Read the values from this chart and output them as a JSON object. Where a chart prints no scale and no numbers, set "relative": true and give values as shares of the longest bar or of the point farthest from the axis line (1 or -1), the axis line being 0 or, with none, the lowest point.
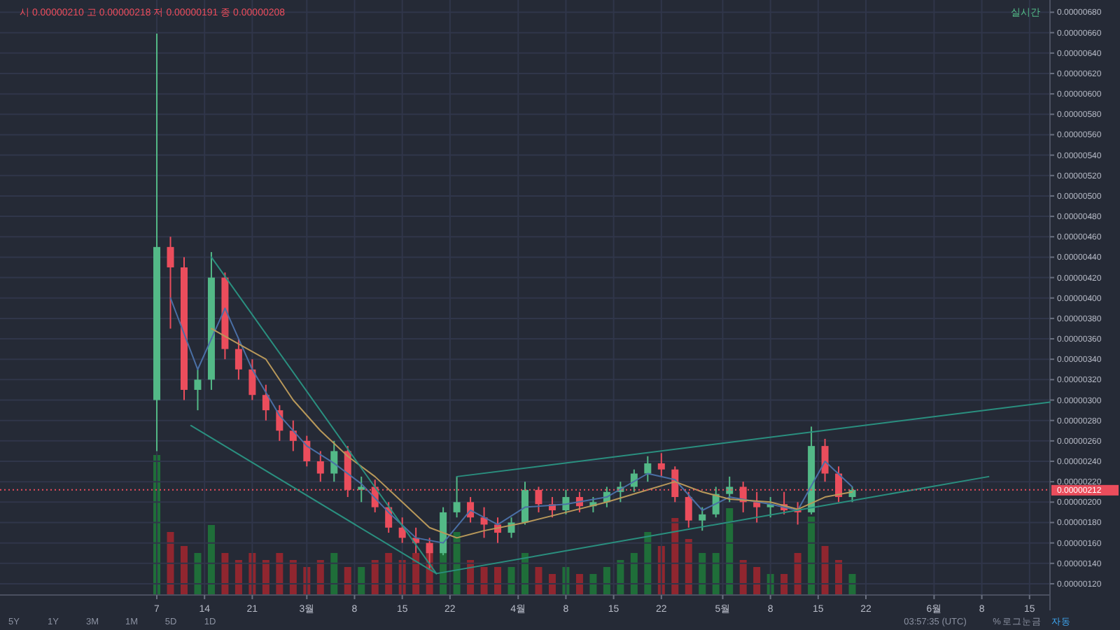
{
  "chart_data": [
    {
      "type": "candlestick",
      "x": [
        "--02-07",
        "--02-09",
        "--02-11",
        "--02-13",
        "--02-15",
        "--02-17",
        "--02-19",
        "--02-21",
        "--02-23",
        "--02-25",
        "--02-27",
        "--03-01",
        "--03-03",
        "--03-05",
        "--03-07",
        "--03-09",
        "--03-11",
        "--03-13",
        "--03-15",
        "--03-17",
        "--03-19",
        "--03-21",
        "--03-23",
        "--03-25",
        "--03-27",
        "--03-29",
        "--03-31",
        "--04-02",
        "--04-04",
        "--04-06",
        "--04-08",
        "--04-10",
        "--04-12",
        "--04-14",
        "--04-16",
        "--04-18",
        "--04-20",
        "--04-22",
        "--04-24",
        "--04-26",
        "--04-28",
        "--04-30",
        "--05-02",
        "--05-04",
        "--05-06",
        "--05-08",
        "--05-10",
        "--05-12",
        "--05-14",
        "--05-16",
        "--05-18",
        "--05-20"
      ],
      "ohlc": [
        [
          3e-06,
          6.59e-06,
          2.5e-06,
          4.5e-06
        ],
        [
          4.5e-06,
          4.6e-06,
          3.7e-06,
          4.3e-06
        ],
        [
          4.3e-06,
          4.4e-06,
          3e-06,
          3.1e-06
        ],
        [
          3.1e-06,
          3.3e-06,
          2.9e-06,
          3.2e-06
        ],
        [
          3.2e-06,
          4.45e-06,
          3.1e-06,
          4.2e-06
        ],
        [
          4.2e-06,
          4.25e-06,
          3.4e-06,
          3.5e-06
        ],
        [
          3.5e-06,
          3.6e-06,
          3.2e-06,
          3.3e-06
        ],
        [
          3.3e-06,
          3.4e-06,
          3e-06,
          3.05e-06
        ],
        [
          3.05e-06,
          3.15e-06,
          2.8e-06,
          2.9e-06
        ],
        [
          2.9e-06,
          2.95e-06,
          2.6e-06,
          2.7e-06
        ],
        [
          2.7e-06,
          2.8e-06,
          2.5e-06,
          2.6e-06
        ],
        [
          2.6e-06,
          2.65e-06,
          2.35e-06,
          2.4e-06
        ],
        [
          2.4e-06,
          2.5e-06,
          2.2e-06,
          2.28e-06
        ],
        [
          2.28e-06,
          2.6e-06,
          2.2e-06,
          2.5e-06
        ],
        [
          2.5e-06,
          2.55e-06,
          2.05e-06,
          2.12e-06
        ],
        [
          2.12e-06,
          2.25e-06,
          2e-06,
          2.15e-06
        ],
        [
          2.15e-06,
          2.22e-06,
          1.9e-06,
          1.95e-06
        ],
        [
          1.95e-06,
          2e-06,
          1.7e-06,
          1.75e-06
        ],
        [
          1.75e-06,
          1.85e-06,
          1.6e-06,
          1.65e-06
        ],
        [
          1.65e-06,
          1.75e-06,
          1.5e-06,
          1.6e-06
        ],
        [
          1.6e-06,
          1.65e-06,
          1.35e-06,
          1.5e-06
        ],
        [
          1.5e-06,
          1.95e-06,
          1.48e-06,
          1.9e-06
        ],
        [
          1.9e-06,
          2.25e-06,
          1.85e-06,
          2e-06
        ],
        [
          2e-06,
          2.05e-06,
          1.8e-06,
          1.85e-06
        ],
        [
          1.85e-06,
          1.95e-06,
          1.65e-06,
          1.78e-06
        ],
        [
          1.78e-06,
          1.85e-06,
          1.6e-06,
          1.7e-06
        ],
        [
          1.7e-06,
          1.85e-06,
          1.65e-06,
          1.8e-06
        ],
        [
          1.8e-06,
          2.2e-06,
          1.78e-06,
          2.12e-06
        ],
        [
          2.12e-06,
          2.15e-06,
          1.9e-06,
          1.98e-06
        ],
        [
          1.98e-06,
          2.05e-06,
          1.85e-06,
          1.92e-06
        ],
        [
          1.92e-06,
          2.12e-06,
          1.88e-06,
          2.05e-06
        ],
        [
          2.05e-06,
          2.1e-06,
          1.9e-06,
          1.96e-06
        ],
        [
          1.96e-06,
          2.05e-06,
          1.9e-06,
          2e-06
        ],
        [
          2e-06,
          2.15e-06,
          1.95e-06,
          2.1e-06
        ],
        [
          2.1e-06,
          2.2e-06,
          2e-06,
          2.15e-06
        ],
        [
          2.15e-06,
          2.32e-06,
          2.1e-06,
          2.28e-06
        ],
        [
          2.28e-06,
          2.45e-06,
          2.2e-06,
          2.38e-06
        ],
        [
          2.38e-06,
          2.48e-06,
          2.25e-06,
          2.32e-06
        ],
        [
          2.32e-06,
          2.35e-06,
          2e-06,
          2.05e-06
        ],
        [
          2.05e-06,
          2.1e-06,
          1.75e-06,
          1.82e-06
        ],
        [
          1.82e-06,
          1.95e-06,
          1.72e-06,
          1.88e-06
        ],
        [
          1.88e-06,
          2.15e-06,
          1.85e-06,
          2.08e-06
        ],
        [
          2.08e-06,
          2.25e-06,
          2e-06,
          2.15e-06
        ],
        [
          2.15e-06,
          2.2e-06,
          1.9e-06,
          2e-06
        ],
        [
          2e-06,
          2.1e-06,
          1.8e-06,
          1.95e-06
        ],
        [
          1.95e-06,
          2.05e-06,
          1.85e-06,
          1.98e-06
        ],
        [
          1.98e-06,
          2.1e-06,
          1.88e-06,
          1.92e-06
        ],
        [
          1.92e-06,
          2e-06,
          1.78e-06,
          1.9e-06
        ],
        [
          1.9e-06,
          2.74e-06,
          1.88e-06,
          2.55e-06
        ],
        [
          2.55e-06,
          2.62e-06,
          2.2e-06,
          2.28e-06
        ],
        [
          2.28e-06,
          2.35e-06,
          2e-06,
          2.05e-06
        ],
        [
          2.05e-06,
          2.15e-06,
          2e-06,
          2.12e-06
        ]
      ],
      "series": [
        {
          "type": "line",
          "color": "#4a6fa5",
          "x": [
            "--02-09",
            "--02-13",
            "--02-17",
            "--02-21",
            "--02-25",
            "--03-01",
            "--03-05",
            "--03-09",
            "--03-13",
            "--03-17",
            "--03-21",
            "--03-25",
            "--03-29",
            "--04-02",
            "--04-08",
            "--04-14",
            "--04-20",
            "--04-24",
            "--04-28",
            "--05-02",
            "--05-08",
            "--05-12",
            "--05-16",
            "--05-20"
          ],
          "values": [
            4e-06,
            3.3e-06,
            3.9e-06,
            3.3e-06,
            2.85e-06,
            2.55e-06,
            2.38e-06,
            2.18e-06,
            1.9e-06,
            1.65e-06,
            1.6e-06,
            1.92e-06,
            1.78e-06,
            1.95e-06,
            1.98e-06,
            2.05e-06,
            2.28e-06,
            2.22e-06,
            1.92e-06,
            2.05e-06,
            1.98e-06,
            1.92e-06,
            2.4e-06,
            2.15e-06
          ]
        },
        {
          "type": "line",
          "color": "#b8985a",
          "x": [
            "--02-15",
            "--02-19",
            "--02-23",
            "--02-27",
            "--03-03",
            "--03-07",
            "--03-11",
            "--03-15",
            "--03-19",
            "--03-23",
            "--03-27",
            "--04-02",
            "--04-08",
            "--04-14",
            "--04-20",
            "--04-24",
            "--04-28",
            "--05-02",
            "--05-08",
            "--05-12",
            "--05-16",
            "--05-20"
          ],
          "values": [
            3.7e-06,
            3.55e-06,
            3.4e-06,
            3e-06,
            2.7e-06,
            2.45e-06,
            2.25e-06,
            2e-06,
            1.75e-06,
            1.65e-06,
            1.72e-06,
            1.8e-06,
            1.9e-06,
            2e-06,
            2.12e-06,
            2.2e-06,
            2.1e-06,
            2.03e-06,
            2e-06,
            1.93e-06,
            2.05e-06,
            2.1e-06
          ]
        },
        {
          "type": "line",
          "color": "#2a8f7f",
          "x": [
            "--02-15",
            "--03-20"
          ],
          "values": [
            4.4e-06,
            1.3e-06
          ]
        },
        {
          "type": "line",
          "color": "#2a8f7f",
          "x": [
            "--02-12",
            "--03-20"
          ],
          "values": [
            2.75e-06,
            1.3e-06
          ]
        },
        {
          "type": "line",
          "color": "#2a8f7f",
          "x": [
            "--03-23",
            "--06-18"
          ],
          "values": [
            2.25e-06,
            2.98e-06
          ]
        },
        {
          "type": "line",
          "color": "#2a8f7f",
          "x": [
            "--03-20",
            "--06-09"
          ],
          "values": [
            1.3e-06,
            2.25e-06
          ]
        }
      ],
      "xlim": [
        "--01-15",
        "--06-18"
      ],
      "xticks": [
        {
          "value": "--02-07",
          "label": "7"
        },
        {
          "value": "--02-14",
          "label": "14"
        },
        {
          "value": "--02-21",
          "label": "21"
        },
        {
          "value": "--03-01",
          "label": "3월"
        },
        {
          "value": "--03-08",
          "label": "8"
        },
        {
          "value": "--03-15",
          "label": "15"
        },
        {
          "value": "--03-22",
          "label": "22"
        },
        {
          "value": "--04-01",
          "label": "4월"
        },
        {
          "value": "--04-08",
          "label": "8"
        },
        {
          "value": "--04-15",
          "label": "15"
        },
        {
          "value": "--04-22",
          "label": "22"
        },
        {
          "value": "--05-01",
          "label": "5월"
        },
        {
          "value": "--05-08",
          "label": "8"
        },
        {
          "value": "--05-15",
          "label": "15"
        },
        {
          "value": "--05-22",
          "label": "22"
        },
        {
          "value": "--06-01",
          "label": "6월"
        },
        {
          "value": "--06-08",
          "label": "8"
        },
        {
          "value": "--06-15",
          "label": "15"
        }
      ],
      "ylim": [
        1.09e-06,
        6.92e-06
      ],
      "yticks": [
        {
          "value": 1.2e-06,
          "label": "0.00000120"
        },
        {
          "value": 1.4e-06,
          "label": "0.00000140"
        },
        {
          "value": 1.6e-06,
          "label": "0.00000160"
        },
        {
          "value": 1.8e-06,
          "label": "0.00000180"
        },
        {
          "value": 2e-06,
          "label": "0.00000200"
        },
        {
          "value": 2.2e-06,
          "label": "0.00000220"
        },
        {
          "value": 2.4e-06,
          "label": "0.00000240"
        },
        {
          "value": 2.6e-06,
          "label": "0.00000260"
        },
        {
          "value": 2.8e-06,
          "label": "0.00000280"
        },
        {
          "value": 3e-06,
          "label": "0.00000300"
        },
        {
          "value": 3.2e-06,
          "label": "0.00000320"
        },
        {
          "value": 3.4e-06,
          "label": "0.00000340"
        },
        {
          "value": 3.6e-06,
          "label": "0.00000360"
        },
        {
          "value": 3.8e-06,
          "label": "0.00000380"
        },
        {
          "value": 4e-06,
          "label": "0.00000400"
        },
        {
          "value": 4.2e-06,
          "label": "0.00000420"
        },
        {
          "value": 4.4e-06,
          "label": "0.00000440"
        },
        {
          "value": 4.6e-06,
          "label": "0.00000460"
        },
        {
          "value": 4.8e-06,
          "label": "0.00000480"
        },
        {
          "value": 5e-06,
          "label": "0.00000500"
        },
        {
          "value": 5.2e-06,
          "label": "0.00000520"
        },
        {
          "value": 5.4e-06,
          "label": "0.00000540"
        },
        {
          "value": 5.6e-06,
          "label": "0.00000560"
        },
        {
          "value": 5.8e-06,
          "label": "0.00000580"
        },
        {
          "value": 6e-06,
          "label": "0.00000600"
        },
        {
          "value": 6.2e-06,
          "label": "0.00000620"
        },
        {
          "value": 6.4e-06,
          "label": "0.00000640"
        },
        {
          "value": 6.6e-06,
          "label": "0.00000660"
        },
        {
          "value": 6.8e-06,
          "label": "0.00000680"
        }
      ],
      "ref_lines": [
        {
          "axis": "y",
          "value": 2.12e-06,
          "label": "0.00000212",
          "color": "#eb4d5c",
          "line_style": "dotted"
        }
      ],
      "grid": true,
      "annotations": [
        "시 0.00000210 고 0.00000218 저 0.00000191 종 0.00000208",
        "실시간",
        "5Y",
        "1Y",
        "3M",
        "1M",
        "5D",
        "1D",
        "03:57:35 (UTC)",
        "%",
        "로그눈금",
        "자동"
      ]
    },
    {
      "type": "bar",
      "relative": true,
      "x": [
        "--02-07",
        "--02-09",
        "--02-11",
        "--02-13",
        "--02-15",
        "--02-17",
        "--02-19",
        "--02-21",
        "--02-23",
        "--02-25",
        "--02-27",
        "--03-01",
        "--03-03",
        "--03-05",
        "--03-07",
        "--03-09",
        "--03-11",
        "--03-13",
        "--03-15",
        "--03-17",
        "--03-19",
        "--03-21",
        "--03-23",
        "--03-25",
        "--03-27",
        "--03-29",
        "--03-31",
        "--04-02",
        "--04-04",
        "--04-06",
        "--04-08",
        "--04-10",
        "--04-12",
        "--04-14",
        "--04-16",
        "--04-18",
        "--04-20",
        "--04-22",
        "--04-24",
        "--04-26",
        "--04-28",
        "--04-30",
        "--05-02",
        "--05-04",
        "--05-06",
        "--05-08",
        "--05-10",
        "--05-12",
        "--05-14",
        "--05-16",
        "--05-18",
        "--05-20"
      ],
      "xlim": [
        "--01-15",
        "--06-18"
      ],
      "values": [
        1.0,
        0.45,
        0.35,
        0.3,
        0.5,
        0.3,
        0.25,
        0.3,
        0.25,
        0.3,
        0.25,
        0.2,
        0.25,
        0.3,
        0.2,
        0.2,
        0.25,
        0.3,
        0.25,
        0.3,
        0.35,
        0.4,
        0.45,
        0.25,
        0.2,
        0.2,
        0.2,
        0.3,
        0.2,
        0.15,
        0.2,
        0.15,
        0.15,
        0.2,
        0.25,
        0.3,
        0.45,
        0.35,
        0.55,
        0.4,
        0.3,
        0.3,
        0.62,
        0.25,
        0.2,
        0.15,
        0.15,
        0.3,
        0.56,
        0.35,
        0.25,
        0.15
      ],
      "colors": [
        "#1f7a3a",
        "#a3262e",
        "#a3262e",
        "#1f7a3a",
        "#1f7a3a",
        "#a3262e",
        "#a3262e",
        "#a3262e",
        "#a3262e",
        "#a3262e",
        "#a3262e",
        "#a3262e",
        "#a3262e",
        "#1f7a3a",
        "#a3262e",
        "#1f7a3a",
        "#a3262e",
        "#a3262e",
        "#a3262e",
        "#a3262e",
        "#a3262e",
        "#1f7a3a",
        "#1f7a3a",
        "#a3262e",
        "#a3262e",
        "#a3262e",
        "#1f7a3a",
        "#1f7a3a",
        "#a3262e",
        "#a3262e",
        "#1f7a3a",
        "#a3262e",
        "#1f7a3a",
        "#1f7a3a",
        "#1f7a3a",
        "#1f7a3a",
        "#1f7a3a",
        "#a3262e",
        "#a3262e",
        "#a3262e",
        "#1f7a3a",
        "#1f7a3a",
        "#1f7a3a",
        "#a3262e",
        "#a3262e",
        "#1f7a3a",
        "#a3262e",
        "#a3262e",
        "#1f7a3a",
        "#a3262e",
        "#a3262e",
        "#1f7a3a"
      ]
    }
  ]
}
